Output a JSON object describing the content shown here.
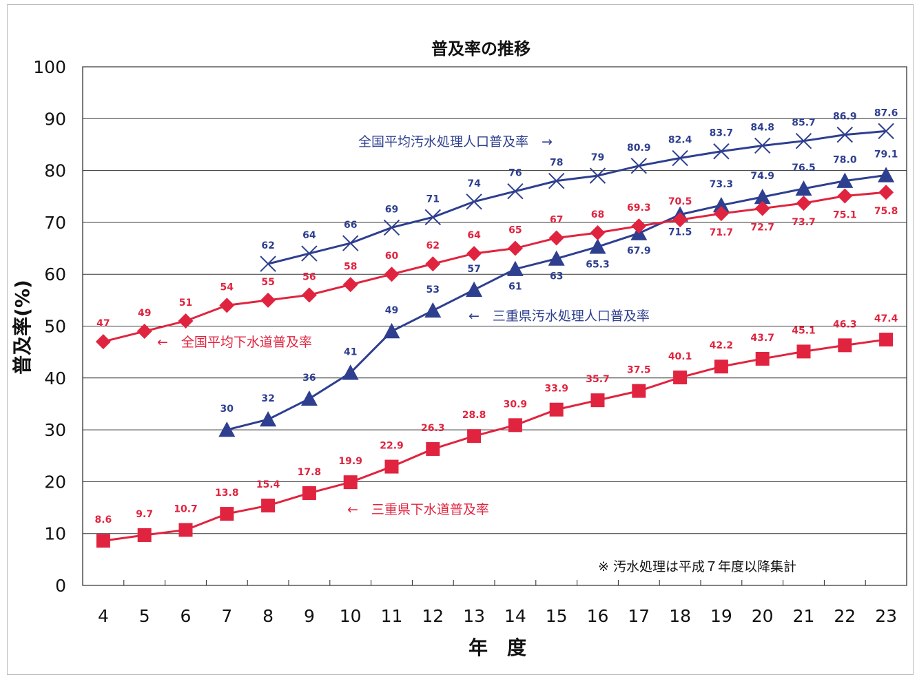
{
  "chart_data": {
    "type": "line",
    "title": "普及率の推移",
    "xlabel": "年　度",
    "ylabel": "普及率(%)",
    "ylim": [
      0,
      100
    ],
    "y_ticks": [
      "0",
      "10",
      "20",
      "30",
      "40",
      "50",
      "60",
      "70",
      "80",
      "90",
      "100"
    ],
    "categories": [
      "4",
      "5",
      "6",
      "7",
      "8",
      "9",
      "10",
      "11",
      "12",
      "13",
      "14",
      "15",
      "16",
      "17",
      "18",
      "19",
      "20",
      "21",
      "22",
      "23"
    ],
    "grid": "horizontal",
    "note": "※ 汚水処理は平成７年度以降集計",
    "series": [
      {
        "id": "national-wastewater",
        "name": "全国平均汚水処理人口普及率",
        "label_text": "全国平均汚水処理人口普及率　→",
        "marker": "x",
        "color": "#2e3f8f",
        "values": [
          null,
          null,
          null,
          null,
          62,
          64,
          66,
          69,
          71,
          74,
          76,
          78,
          79,
          80.9,
          82.4,
          83.7,
          84.8,
          85.7,
          86.9,
          87.6
        ],
        "labels": [
          "",
          "",
          "",
          "",
          "62",
          "64",
          "66",
          "69",
          "71",
          "74",
          "76",
          "78",
          "79",
          "80.9",
          "82.4",
          "83.7",
          "84.8",
          "85.7",
          "86.9",
          "87.6"
        ]
      },
      {
        "id": "mie-wastewater",
        "name": "三重県汚水処理人口普及率",
        "label_text": "←　三重県汚水処理人口普及率",
        "marker": "triangle",
        "color": "#2e3f8f",
        "values": [
          null,
          null,
          null,
          30,
          32,
          36,
          41,
          49,
          53,
          57,
          61,
          63,
          65.3,
          67.9,
          71.5,
          73.3,
          74.9,
          76.5,
          78,
          79.1
        ],
        "labels": [
          "",
          "",
          "",
          "30",
          "32",
          "36",
          "41",
          "49",
          "53",
          "57",
          "61",
          "63",
          "65.3",
          "67.9",
          "71.5",
          "73.3",
          "74.9",
          "76.5",
          "78.0",
          "79.1"
        ]
      },
      {
        "id": "national-sewer",
        "name": "全国平均下水道普及率",
        "label_text": "←　全国平均下水道普及率",
        "marker": "diamond",
        "color": "#e0243f",
        "values": [
          47,
          49,
          51,
          54,
          55,
          56,
          58,
          60,
          62,
          64,
          65,
          67,
          68,
          69.3,
          70.5,
          71.7,
          72.7,
          73.7,
          75.1,
          75.8
        ],
        "labels": [
          "47",
          "49",
          "51",
          "54",
          "55",
          "56",
          "58",
          "60",
          "62",
          "64",
          "65",
          "67",
          "68",
          "69.3",
          "70.5",
          "71.7",
          "72.7",
          "73.7",
          "75.1",
          "75.8"
        ]
      },
      {
        "id": "mie-sewer",
        "name": "三重県下水道普及率",
        "label_text": "←　三重県下水道普及率",
        "marker": "square",
        "color": "#e0243f",
        "values": [
          8.6,
          9.7,
          10.7,
          13.8,
          15.4,
          17.8,
          19.9,
          22.9,
          26.3,
          28.8,
          30.9,
          33.9,
          35.7,
          37.5,
          40.1,
          42.2,
          43.7,
          45.1,
          46.3,
          47.4
        ],
        "labels": [
          "8.6",
          "9.7",
          "10.7",
          "13.8",
          "15.4",
          "17.8",
          "19.9",
          "22.9",
          "26.3",
          "28.8",
          "30.9",
          "33.9",
          "35.7",
          "37.5",
          "40.1",
          "42.2",
          "43.7",
          "45.1",
          "46.3",
          "47.4"
        ]
      }
    ]
  }
}
